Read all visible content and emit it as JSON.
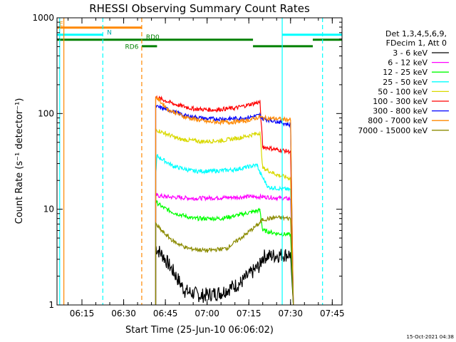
{
  "chart_data": {
    "type": "line",
    "title": "RHESSI Observing Summary Count Rates",
    "xlabel": "Start Time (25-Jun-10 06:06:02)",
    "ylabel": "Count Rate (s⁻¹ detector⁻¹)",
    "yscale": "log",
    "ylim": [
      1,
      1000
    ],
    "xlim": [
      "06:06:02",
      "07:48:30"
    ],
    "x_ticks": [
      "06:15",
      "06:30",
      "06:45",
      "07:00",
      "07:15",
      "07:30",
      "07:45"
    ],
    "y_ticks": [
      "1",
      "10",
      "100",
      "1000"
    ],
    "grid": false,
    "legend": {
      "position": "right",
      "header": [
        "Det 1,3,4,5,6,9,",
        "FDecim 1, Att 0"
      ]
    },
    "series": [
      {
        "name": "3 - 6 keV",
        "color": "#000000",
        "points": [
          [
            "06:41:30",
            4.0
          ],
          [
            "06:44",
            3.3
          ],
          [
            "06:48",
            2.2
          ],
          [
            "06:52",
            1.4
          ],
          [
            "06:58",
            1.25
          ],
          [
            "07:05",
            1.35
          ],
          [
            "07:12",
            1.7
          ],
          [
            "07:19",
            2.6
          ],
          [
            "07:20",
            3.2
          ],
          [
            "07:30",
            3.4
          ],
          [
            "07:31",
            1.0
          ]
        ]
      },
      {
        "name": "6 - 12 keV",
        "color": "#ff00ff",
        "points": [
          [
            "06:41:30",
            14
          ],
          [
            "06:45",
            13.5
          ],
          [
            "06:55",
            13
          ],
          [
            "07:05",
            13.2
          ],
          [
            "07:15",
            13.5
          ],
          [
            "07:20",
            13.5
          ],
          [
            "07:30",
            12.8
          ],
          [
            "07:31",
            1.0
          ]
        ]
      },
      {
        "name": "12 - 25 keV",
        "color": "#00ff00",
        "points": [
          [
            "06:41:30",
            12
          ],
          [
            "06:44",
            10.5
          ],
          [
            "06:48",
            9.2
          ],
          [
            "06:55",
            8.0
          ],
          [
            "07:05",
            8.0
          ],
          [
            "07:12",
            8.8
          ],
          [
            "07:19",
            9.8
          ],
          [
            "07:20",
            6.0
          ],
          [
            "07:25",
            5.6
          ],
          [
            "07:30",
            5.4
          ],
          [
            "07:31",
            1.0
          ]
        ]
      },
      {
        "name": "25 - 50 keV",
        "color": "#00ffff",
        "points": [
          [
            "06:41:30",
            24
          ],
          [
            "06:42",
            36
          ],
          [
            "06:48",
            28
          ],
          [
            "06:55",
            25
          ],
          [
            "07:02",
            25
          ],
          [
            "07:10",
            26
          ],
          [
            "07:18",
            29
          ],
          [
            "07:19",
            24
          ],
          [
            "07:22",
            17
          ],
          [
            "07:30",
            16
          ],
          [
            "07:31",
            1.0
          ]
        ]
      },
      {
        "name": "50 - 100 keV",
        "color": "#d9d900",
        "points": [
          [
            "06:41:30",
            68
          ],
          [
            "06:45",
            62
          ],
          [
            "06:50",
            54
          ],
          [
            "06:58",
            51
          ],
          [
            "07:05",
            52
          ],
          [
            "07:12",
            56
          ],
          [
            "07:19",
            63
          ],
          [
            "07:20",
            27
          ],
          [
            "07:25",
            23
          ],
          [
            "07:30",
            21
          ],
          [
            "07:31",
            1.0
          ]
        ]
      },
      {
        "name": "100 - 300 keV",
        "color": "#ff0000",
        "points": [
          [
            "06:41:30",
            148
          ],
          [
            "06:44",
            140
          ],
          [
            "06:48",
            126
          ],
          [
            "06:55",
            112
          ],
          [
            "07:02",
            109
          ],
          [
            "07:10",
            114
          ],
          [
            "07:19",
            132
          ],
          [
            "07:20",
            45
          ],
          [
            "07:25",
            42
          ],
          [
            "07:30",
            40
          ],
          [
            "07:31",
            1.0
          ]
        ]
      },
      {
        "name": "300 - 800 keV",
        "color": "#0000ff",
        "points": [
          [
            "06:41:30",
            118
          ],
          [
            "06:46",
            110
          ],
          [
            "06:52",
            95
          ],
          [
            "07:00",
            88
          ],
          [
            "07:08",
            88
          ],
          [
            "07:14",
            90
          ],
          [
            "07:19",
            96
          ],
          [
            "07:20",
            88
          ],
          [
            "07:25",
            83
          ],
          [
            "07:30",
            76
          ],
          [
            "07:31",
            1.0
          ]
        ]
      },
      {
        "name": "800 - 7000 keV",
        "color": "#ff8800",
        "points": [
          [
            "06:41:30",
            150
          ],
          [
            "06:46",
            110
          ],
          [
            "06:52",
            92
          ],
          [
            "07:00",
            82
          ],
          [
            "07:08",
            81
          ],
          [
            "07:14",
            84
          ],
          [
            "07:19",
            92
          ],
          [
            "07:20",
            90
          ],
          [
            "07:25",
            88
          ],
          [
            "07:30",
            86
          ],
          [
            "07:31",
            1.0
          ]
        ]
      },
      {
        "name": "7000 - 15000 keV",
        "color": "#8b8b00",
        "points": [
          [
            "06:41:30",
            7.0
          ],
          [
            "06:44",
            5.8
          ],
          [
            "06:48",
            4.6
          ],
          [
            "06:53",
            3.9
          ],
          [
            "07:00",
            3.7
          ],
          [
            "07:07",
            3.9
          ],
          [
            "07:14",
            5.5
          ],
          [
            "07:19",
            7.2
          ],
          [
            "07:20",
            7.8
          ],
          [
            "07:25",
            8.2
          ],
          [
            "07:30",
            8.0
          ],
          [
            "07:31",
            1.0
          ]
        ]
      }
    ],
    "annotations": {
      "vertical_lines": [
        {
          "time": "06:07:00",
          "color": "#00ffff",
          "style": "solid"
        },
        {
          "time": "06:08:30",
          "color": "#ff8800",
          "style": "solid"
        },
        {
          "time": "06:22:30",
          "color": "#00ffff",
          "style": "dashed"
        },
        {
          "time": "06:36:30",
          "color": "#ff8800",
          "style": "dashed"
        },
        {
          "time": "07:27:00",
          "color": "#00ffff",
          "style": "solid"
        },
        {
          "time": "07:41:30",
          "color": "#00ffff",
          "style": "dashed"
        }
      ],
      "flag_bars": [
        {
          "start": "06:06:02",
          "end": "06:36:30",
          "y": 790,
          "color": "#ff8800"
        },
        {
          "start": "06:06:02",
          "end": "06:22:30",
          "y": 665,
          "color": "#00ffff"
        },
        {
          "start": "07:27:00",
          "end": "07:48:30",
          "y": 665,
          "color": "#00ffff"
        },
        {
          "start": "06:06:02",
          "end": "07:16:30",
          "y": 590,
          "color": "#008000"
        },
        {
          "start": "07:16:30",
          "end": "07:38:00",
          "y": 505,
          "color": "#008000"
        },
        {
          "start": "07:38:00",
          "end": "07:48:30",
          "y": 590,
          "color": "#008000"
        },
        {
          "start": "06:36:30",
          "end": "06:42:00",
          "y": 505,
          "color": "#008000"
        }
      ],
      "flag_labels": [
        {
          "text": "N",
          "time": "06:23:30",
          "y": 670,
          "color": "#00aaaa"
        },
        {
          "text": "RD0",
          "time": "06:37:30",
          "y": 600,
          "color": "#008000"
        },
        {
          "text": "RD6",
          "time": "06:30:00",
          "y": 475,
          "color": "#008000"
        },
        {
          "text": "E",
          "time": "06:06:20",
          "y": 820,
          "color": "#ff8800"
        }
      ]
    },
    "footer_stamp": "15-Oct-2021 04:38"
  }
}
